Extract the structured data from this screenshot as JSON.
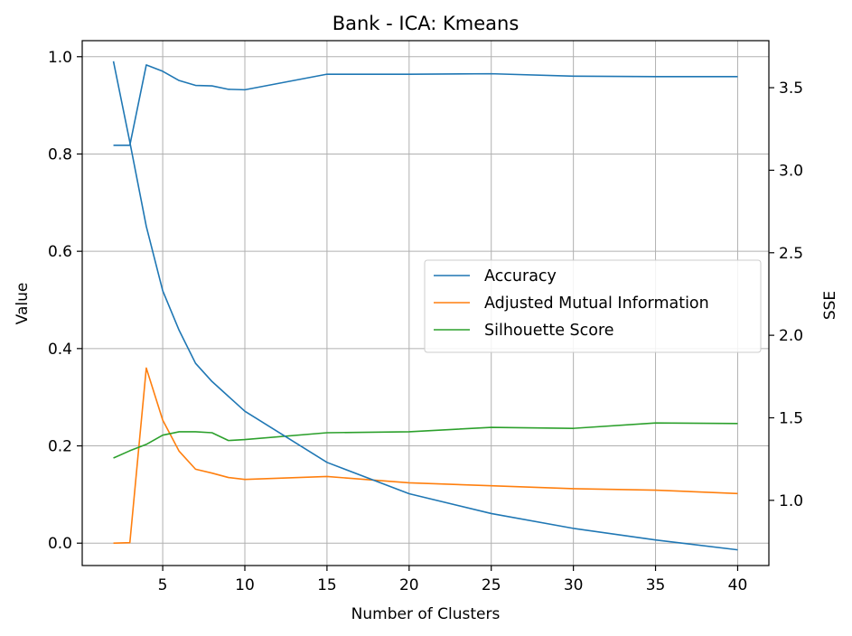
{
  "chart_data": {
    "type": "line",
    "title": "Bank - ICA: Kmeans",
    "xlabel": "Number of Clusters",
    "ylabel": "Value",
    "y2label": "SSE",
    "x": [
      2,
      3,
      4,
      5,
      6,
      7,
      8,
      9,
      10,
      15,
      20,
      25,
      30,
      35,
      40
    ],
    "xticks": [
      5,
      10,
      15,
      20,
      25,
      30,
      35,
      40
    ],
    "xlim": [
      0.1,
      41.9
    ],
    "ylim": [
      -0.046,
      1.033
    ],
    "yticks": [
      0.0,
      0.2,
      0.4,
      0.6,
      0.8,
      1.0
    ],
    "y2lim": [
      0.605,
      3.785
    ],
    "y2ticks": [
      1.0,
      1.5,
      2.0,
      2.5,
      3.0,
      3.5
    ],
    "grid": true,
    "legend_position": "center-right",
    "series": [
      {
        "name": "Accuracy",
        "axis": "left",
        "color": "#1f77b4",
        "values": [
          0.818,
          0.818,
          0.983,
          0.97,
          0.951,
          0.941,
          0.94,
          0.933,
          0.932,
          0.964,
          0.964,
          0.965,
          0.96,
          0.959,
          0.959
        ]
      },
      {
        "name": "Adjusted Mutual Information",
        "axis": "left",
        "color": "#ff7f0e",
        "values": [
          0.0,
          0.001,
          0.36,
          0.253,
          0.189,
          0.152,
          0.144,
          0.135,
          0.131,
          0.137,
          0.124,
          0.118,
          0.112,
          0.109,
          0.102
        ]
      },
      {
        "name": "Silhouette Score",
        "axis": "left",
        "color": "#2ca02c",
        "values": [
          0.175,
          0.19,
          0.203,
          0.222,
          0.229,
          0.229,
          0.227,
          0.211,
          0.213,
          0.227,
          0.229,
          0.238,
          0.236,
          0.247,
          0.246
        ]
      },
      {
        "axis": "right",
        "color": "#1f77b4",
        "values": [
          3.66,
          3.17,
          2.66,
          2.27,
          2.03,
          1.83,
          1.72,
          1.63,
          1.54,
          1.23,
          1.04,
          0.92,
          0.83,
          0.76,
          0.7
        ]
      }
    ]
  }
}
